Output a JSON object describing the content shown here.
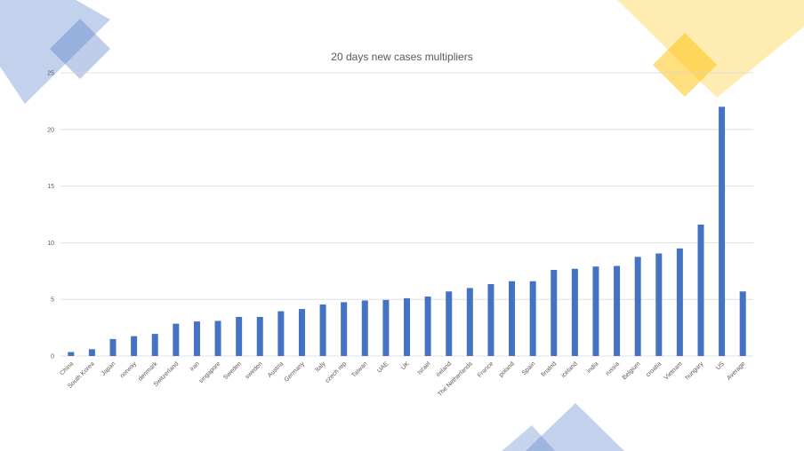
{
  "chart_data": {
    "type": "bar",
    "title": "20 days new cases multipliers",
    "xlabel": "",
    "ylabel": "",
    "ylim": [
      0,
      25
    ],
    "yticks": [
      0,
      5,
      10,
      15,
      20,
      25
    ],
    "grid": true,
    "legend": "none",
    "bar_color": "#4472c4",
    "categories": [
      "China",
      "South Korea",
      "Japan",
      "norway",
      "denmark",
      "Switzerland",
      "iran",
      "singapore",
      "Sweden",
      "sweden",
      "Austria",
      "Germany",
      "Italy",
      "czech rep",
      "Taiwan",
      "UAE",
      "UK",
      "Israel",
      "ireland",
      "The Netherlands",
      "France",
      "poland",
      "Spain",
      "finalnd",
      "iceland",
      "india",
      "russia",
      "Belgium",
      "croatia",
      "Vietnam",
      "hungary",
      "US",
      "Average"
    ],
    "values": [
      0.35,
      0.6,
      1.5,
      1.75,
      1.95,
      2.85,
      3.05,
      3.1,
      3.45,
      3.45,
      3.95,
      4.15,
      4.55,
      4.75,
      4.9,
      4.95,
      5.1,
      5.25,
      5.7,
      6.0,
      6.35,
      6.6,
      6.6,
      7.6,
      7.7,
      7.9,
      7.95,
      8.75,
      9.05,
      9.5,
      11.6,
      22.0,
      5.7
    ]
  },
  "theme": {
    "decor_blue": "#4472c4",
    "decor_yellow": "#ffc000",
    "grid_color": "#d9d9d9",
    "text_color": "#595959"
  }
}
